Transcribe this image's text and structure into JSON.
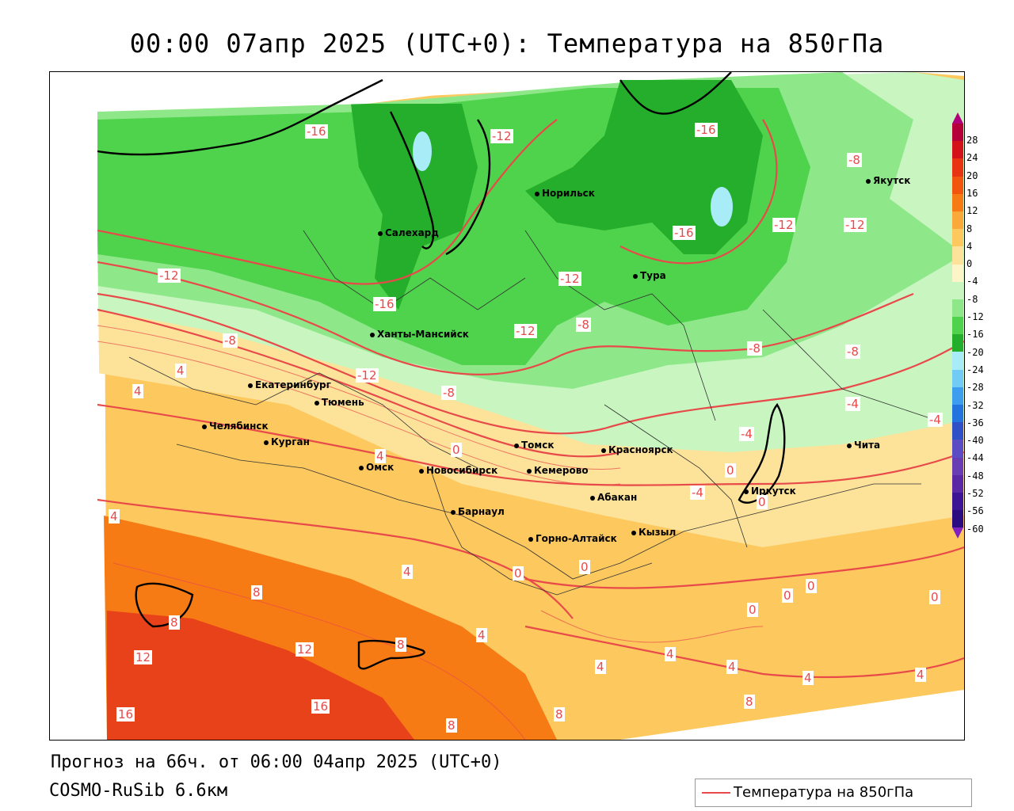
{
  "title": "00:00 07апр 2025 (UTC+0): Температура на 850гПа",
  "footer": {
    "forecast": "Прогноз на 66ч. от 06:00 04апр 2025 (UTC+0)",
    "model": "COSMO-RuSib 6.6км"
  },
  "legend": {
    "label": "Температура на 850гПа",
    "line_color": "#e84a4a"
  },
  "colorbar": {
    "ticks": [
      "28",
      "24",
      "20",
      "16",
      "12",
      "8",
      "4",
      "0",
      "-4",
      "-8",
      "-12",
      "-16",
      "-20",
      "-24",
      "-28",
      "-32",
      "-36",
      "-40",
      "-44",
      "-48",
      "-52",
      "-56",
      "-60"
    ],
    "colors": [
      "#b5003a",
      "#d3121a",
      "#e83410",
      "#f2560e",
      "#f77b14",
      "#fba83a",
      "#fdc85e",
      "#fde39a",
      "#fdf5c8",
      "#c8f5c0",
      "#8ee88a",
      "#4fd24c",
      "#25ad2c",
      "#a8ecf8",
      "#72cbf5",
      "#3d9ef0",
      "#2474e0",
      "#3050c8",
      "#5c4cc4",
      "#6a3cb4",
      "#5a28a4",
      "#3c1494",
      "#2a0c80"
    ]
  },
  "cities": [
    {
      "name": "Салехард"
    },
    {
      "name": "Норильск"
    },
    {
      "name": "Тура"
    },
    {
      "name": "Якутск"
    },
    {
      "name": "Ханты-Мансийск"
    },
    {
      "name": "Екатеринбург"
    },
    {
      "name": "Тюмень"
    },
    {
      "name": "Челябинск"
    },
    {
      "name": "Курган"
    },
    {
      "name": "Омск"
    },
    {
      "name": "Новосибирск"
    },
    {
      "name": "Томск"
    },
    {
      "name": "Кемерово"
    },
    {
      "name": "Красноярск"
    },
    {
      "name": "Абакан"
    },
    {
      "name": "Барнаул"
    },
    {
      "name": "Горно-Алтайск"
    },
    {
      "name": "Кызыл"
    },
    {
      "name": "Иркутск"
    },
    {
      "name": "Чита"
    }
  ],
  "contour_labels": [
    "-16",
    "-12",
    "-12",
    "-16",
    "-16",
    "-8",
    "-12",
    "-12",
    "-8",
    "-16",
    "-12",
    "-8",
    "-12",
    "-8",
    "-8",
    "-4",
    "-4",
    "-4",
    "-8",
    "-12",
    "4",
    "4",
    "0",
    "4",
    "4",
    "0",
    "-4",
    "0",
    "4",
    "0",
    "0",
    "0",
    "0",
    "8",
    "8",
    "12",
    "12",
    "8",
    "16",
    "16",
    "8",
    "8",
    "4",
    "4",
    "4",
    "4",
    "4",
    "4",
    "8",
    "0",
    "0"
  ]
}
